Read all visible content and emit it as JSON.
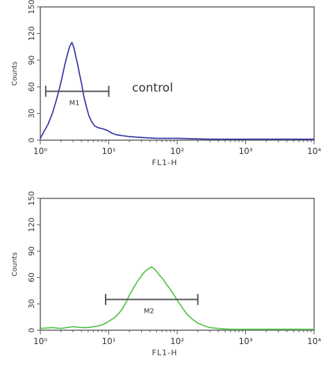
{
  "chart_data": [
    {
      "type": "line",
      "ylabel": "Counts",
      "xlabel": "FL1-H",
      "x_scale": "log",
      "xlim": [
        1,
        10000
      ],
      "ylim": [
        0,
        150
      ],
      "x_ticks": [
        {
          "value": 1,
          "label": "10⁰"
        },
        {
          "value": 10,
          "label": "10¹"
        },
        {
          "value": 100,
          "label": "10²"
        },
        {
          "value": 1000,
          "label": "10³"
        },
        {
          "value": 10000,
          "label": "10⁴"
        }
      ],
      "y_ticks": [
        "0",
        "30",
        "60",
        "90",
        "120",
        "150"
      ],
      "annotation": "control",
      "gate": {
        "label": "M1",
        "x_range": [
          1.2,
          10
        ],
        "y": 55
      },
      "series": [
        {
          "color": "#3a3aa8",
          "x": [
            1,
            1.1,
            1.3,
            1.5,
            1.7,
            1.9,
            2.1,
            2.3,
            2.5,
            2.7,
            2.9,
            3.1,
            3.3,
            3.5,
            3.7,
            4.0,
            4.3,
            4.7,
            5.1,
            5.6,
            6.2,
            7.0,
            8.0,
            9.5,
            11,
            13,
            16,
            20,
            30,
            50,
            100,
            300,
            1000,
            3000,
            10000
          ],
          "y": [
            2,
            8,
            18,
            30,
            44,
            58,
            72,
            86,
            97,
            106,
            110,
            104,
            94,
            86,
            76,
            64,
            50,
            38,
            28,
            21,
            16,
            14,
            13,
            11,
            8,
            6,
            5,
            4,
            3,
            2,
            2,
            1,
            1,
            1,
            1
          ]
        }
      ]
    },
    {
      "type": "line",
      "ylabel": "Counts",
      "xlabel": "FL1-H",
      "x_scale": "log",
      "xlim": [
        1,
        10000
      ],
      "ylim": [
        0,
        150
      ],
      "x_ticks": [
        {
          "value": 1,
          "label": "10⁰"
        },
        {
          "value": 10,
          "label": "10¹"
        },
        {
          "value": 100,
          "label": "10²"
        },
        {
          "value": 1000,
          "label": "10³"
        },
        {
          "value": 10000,
          "label": "10⁴"
        }
      ],
      "y_ticks": [
        "0",
        "30",
        "60",
        "90",
        "120",
        "150"
      ],
      "annotation": "",
      "gate": {
        "label": "M2",
        "x_range": [
          9,
          200
        ],
        "y": 35
      },
      "series": [
        {
          "color": "#58c450",
          "x": [
            1,
            1.5,
            2,
            3,
            4,
            5,
            6,
            7,
            8,
            10,
            12,
            14,
            16,
            18,
            20,
            23,
            26,
            30,
            34,
            38,
            42,
            46,
            50,
            56,
            62,
            70,
            80,
            90,
            100,
            120,
            140,
            170,
            200,
            250,
            300,
            400,
            600,
            1000,
            3000,
            10000
          ],
          "y": [
            2,
            3,
            2,
            4,
            3,
            3,
            4,
            5,
            6,
            10,
            14,
            19,
            25,
            32,
            40,
            48,
            55,
            62,
            67,
            70,
            72,
            70,
            67,
            62,
            58,
            52,
            46,
            40,
            34,
            25,
            18,
            12,
            8,
            5,
            3,
            2,
            1,
            1,
            1,
            1
          ]
        }
      ]
    }
  ]
}
